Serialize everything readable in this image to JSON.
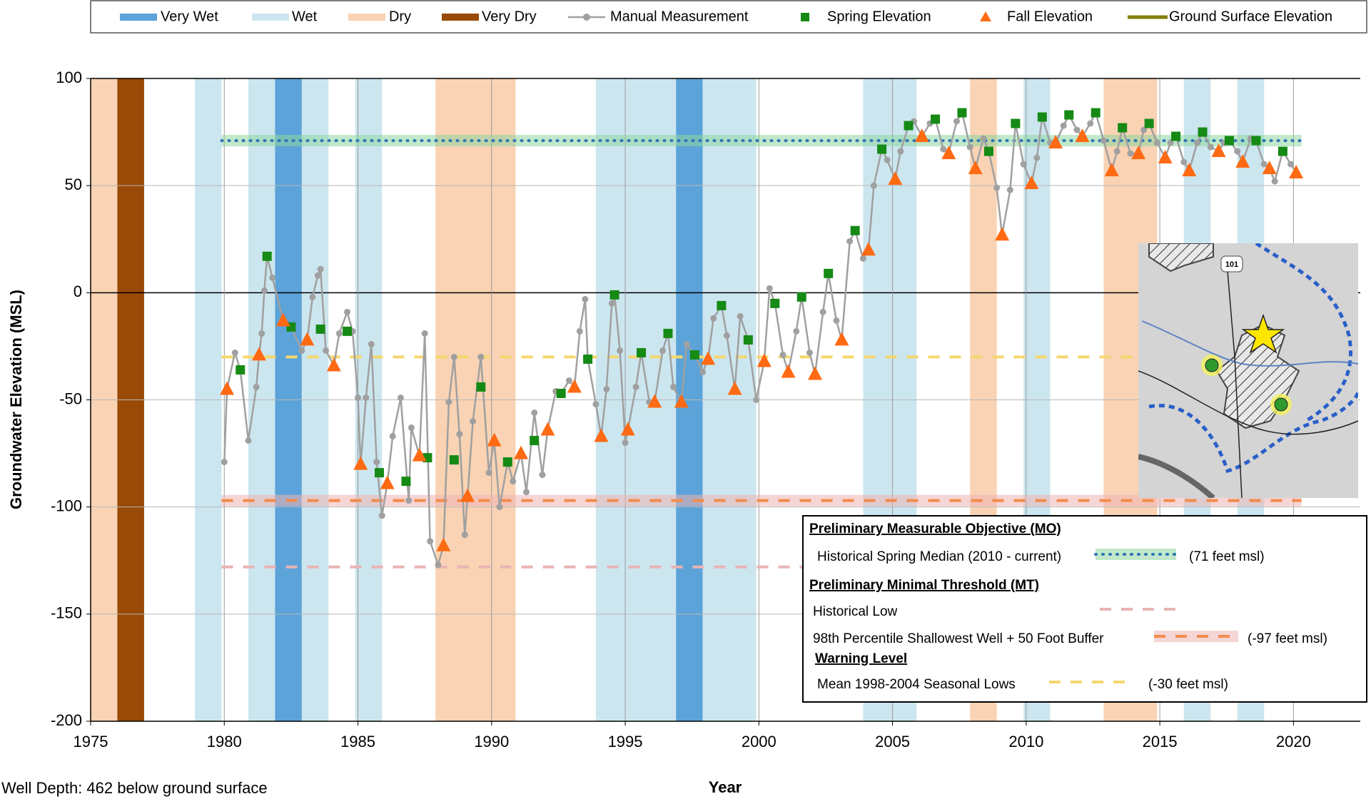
{
  "chart_data": {
    "type": "line",
    "x_label": "Year",
    "y_label": "Groundwater Elevation (MSL)",
    "note": "Well Depth: 462 below ground surface",
    "xlim": [
      1975,
      2022.5
    ],
    "xticks": [
      1975,
      1980,
      1985,
      1990,
      1995,
      2000,
      2005,
      2010,
      2015,
      2020
    ],
    "ylim": [
      -200,
      100
    ],
    "yticks": [
      -200,
      -150,
      -100,
      -50,
      0,
      50,
      100
    ],
    "grid": true,
    "climate_bands": {
      "classes": [
        {
          "name": "Very Wet",
          "color": "#5ba3d9"
        },
        {
          "name": "Wet",
          "color": "#cce6ef"
        },
        {
          "name": "Dry",
          "color": "#f9d3b4"
        },
        {
          "name": "Very Dry",
          "color": "#994a06"
        }
      ],
      "spans": [
        {
          "class": 2,
          "x": [
            1975,
            1976
          ]
        },
        {
          "class": 3,
          "x": [
            1976,
            1977
          ]
        },
        {
          "class": 1,
          "x": [
            1978.9,
            1979.9
          ]
        },
        {
          "class": 1,
          "x": [
            1980.9,
            1981.9
          ]
        },
        {
          "class": 0,
          "x": [
            1981.9,
            1982.9
          ]
        },
        {
          "class": 1,
          "x": [
            1982.9,
            1983.9
          ]
        },
        {
          "class": 1,
          "x": [
            1984.9,
            1985.9
          ]
        },
        {
          "class": 2,
          "x": [
            1987.9,
            1990.9
          ]
        },
        {
          "class": 1,
          "x": [
            1993.9,
            1996.9
          ]
        },
        {
          "class": 0,
          "x": [
            1996.9,
            1997.9
          ]
        },
        {
          "class": 1,
          "x": [
            1997.9,
            1999.9
          ]
        },
        {
          "class": 1,
          "x": [
            2003.9,
            2005.9
          ]
        },
        {
          "class": 2,
          "x": [
            2007.9,
            2008.9
          ]
        },
        {
          "class": 1,
          "x": [
            2009.9,
            2010.9
          ]
        },
        {
          "class": 2,
          "x": [
            2012.9,
            2014.9
          ]
        },
        {
          "class": 1,
          "x": [
            2015.9,
            2016.9
          ]
        },
        {
          "class": 1,
          "x": [
            2017.9,
            2018.9
          ]
        }
      ]
    },
    "series": [
      {
        "name": "Manual Measurement",
        "color": "#a0a0a0",
        "marker": "circle",
        "x": [
          1980.0,
          1980.1,
          1980.4,
          1980.6,
          1980.9,
          1981.2,
          1981.3,
          1981.4,
          1981.5,
          1981.6,
          1981.8,
          1982.2,
          1982.5,
          1982.9,
          1983.1,
          1983.3,
          1983.5,
          1983.6,
          1983.8,
          1984.1,
          1984.3,
          1984.6,
          1984.8,
          1985.0,
          1985.1,
          1985.3,
          1985.5,
          1985.7,
          1985.9,
          1986.1,
          1986.3,
          1986.6,
          1986.9,
          1987.0,
          1987.3,
          1987.5,
          1987.7,
          1988.0,
          1988.2,
          1988.4,
          1988.6,
          1988.8,
          1989.0,
          1989.1,
          1989.3,
          1989.6,
          1989.9,
          1990.1,
          1990.3,
          1990.6,
          1990.8,
          1991.1,
          1991.3,
          1991.6,
          1991.9,
          1992.1,
          1992.4,
          1992.6,
          1992.9,
          1993.1,
          1993.3,
          1993.5,
          1993.6,
          1993.9,
          1994.1,
          1994.3,
          1994.5,
          1994.6,
          1994.8,
          1995.0,
          1995.1,
          1995.4,
          1995.6,
          1995.9,
          1996.1,
          1996.4,
          1996.6,
          1996.8,
          1997.1,
          1997.3,
          1997.6,
          1997.9,
          1998.1,
          1998.3,
          1998.6,
          1998.8,
          1999.1,
          1999.3,
          1999.6,
          1999.9,
          2000.2,
          2000.4,
          2000.6,
          2000.9,
          2001.1,
          2001.4,
          2001.6,
          2001.9,
          2002.1,
          2002.4,
          2002.6,
          2002.9,
          2003.1,
          2003.4,
          2003.6,
          2003.9,
          2004.1,
          2004.3,
          2004.6,
          2004.8,
          2005.1,
          2005.3,
          2005.6,
          2005.8,
          2006.1,
          2006.4,
          2006.6,
          2006.9,
          2007.1,
          2007.4,
          2007.6,
          2007.9,
          2008.1,
          2008.4,
          2008.6,
          2008.9,
          2009.1,
          2009.4,
          2009.6,
          2009.9,
          2010.2,
          2010.4,
          2010.6,
          2010.9,
          2011.1,
          2011.4,
          2011.6,
          2011.9,
          2012.1,
          2012.4,
          2012.6,
          2012.9,
          2013.2,
          2013.4,
          2013.6,
          2013.9,
          2014.2,
          2014.4,
          2014.6,
          2014.9,
          2015.2,
          2015.4,
          2015.6,
          2015.9,
          2016.1,
          2016.4,
          2016.6,
          2016.9,
          2017.2,
          2017.4,
          2017.6,
          2017.9,
          2018.1,
          2018.4,
          2018.6,
          2018.9,
          2019.1,
          2019.3,
          2019.6,
          2019.9,
          2020.1
        ],
        "values": [
          -79,
          -45,
          -28,
          -36,
          -69,
          -44,
          -29,
          -19,
          1,
          17,
          7,
          -13,
          -16,
          -27,
          -22,
          -2,
          8,
          11,
          -27,
          -34,
          -19,
          -9,
          -18,
          -49,
          -80,
          -49,
          -24,
          -79,
          -104,
          -89,
          -67,
          -49,
          -97,
          -63,
          -76,
          -19,
          -116,
          -127,
          -118,
          -51,
          -30,
          -66,
          -113,
          -95,
          -60,
          -30,
          -84,
          -69,
          -100,
          -79,
          -88,
          -75,
          -93,
          -56,
          -85,
          -64,
          -46,
          -47,
          -41,
          -44,
          -18,
          -3,
          -31,
          -52,
          -67,
          -45,
          -5,
          -1,
          -27,
          -70,
          -64,
          -44,
          -28,
          -51,
          -51,
          -27,
          -19,
          -44,
          -51,
          -24,
          -29,
          -37,
          -31,
          -12,
          -6,
          -20,
          -45,
          -11,
          -22,
          -50,
          -32,
          2,
          -5,
          -29,
          -37,
          -18,
          -2,
          -28,
          -38,
          -9,
          9,
          -13,
          -22,
          24,
          29,
          16,
          20,
          50,
          67,
          62,
          53,
          66,
          78,
          80,
          73,
          79,
          81,
          67,
          65,
          80,
          84,
          68,
          58,
          72,
          66,
          49,
          27,
          48,
          79,
          60,
          51,
          63,
          82,
          70,
          70,
          78,
          83,
          76,
          73,
          79,
          84,
          71,
          57,
          66,
          77,
          65,
          65,
          76,
          79,
          70,
          63,
          70,
          73,
          61,
          57,
          70,
          75,
          68,
          66,
          70,
          71,
          66,
          61,
          72,
          71,
          60,
          58,
          52,
          66,
          60,
          56
        ]
      },
      {
        "name": "Spring Elevation",
        "color": "#158a15",
        "marker": "square",
        "x": [
          1980.6,
          1981.6,
          1982.5,
          1983.6,
          1984.6,
          1985.8,
          1986.8,
          1987.6,
          1988.6,
          1989.6,
          1990.6,
          1991.6,
          1992.6,
          1993.6,
          1994.6,
          1995.6,
          1996.6,
          1997.6,
          1998.6,
          1999.6,
          2000.6,
          2001.6,
          2002.6,
          2003.6,
          2004.6,
          2005.6,
          2006.6,
          2007.6,
          2008.6,
          2009.6,
          2010.6,
          2011.6,
          2012.6,
          2013.6,
          2014.6,
          2015.6,
          2016.6,
          2017.6,
          2018.6,
          2019.6
        ],
        "values": [
          -36,
          17,
          -16,
          -17,
          -18,
          -84,
          -88,
          -77,
          -78,
          -44,
          -79,
          -69,
          -47,
          -31,
          -1,
          -28,
          -19,
          -29,
          -6,
          -22,
          -5,
          -2,
          9,
          29,
          67,
          78,
          81,
          84,
          66,
          79,
          82,
          83,
          84,
          77,
          79,
          73,
          75,
          71,
          71,
          66
        ]
      },
      {
        "name": "Fall Elevation",
        "color": "#ff6a13",
        "marker": "triangle",
        "x": [
          1980.1,
          1981.3,
          1982.2,
          1983.1,
          1984.1,
          1985.1,
          1986.1,
          1987.3,
          1988.2,
          1989.1,
          1990.1,
          1991.1,
          1992.1,
          1993.1,
          1994.1,
          1995.1,
          1996.1,
          1997.1,
          1998.1,
          1999.1,
          2000.2,
          2001.1,
          2002.1,
          2003.1,
          2004.1,
          2005.1,
          2006.1,
          2007.1,
          2008.1,
          2009.1,
          2010.2,
          2011.1,
          2012.1,
          2013.2,
          2014.2,
          2015.2,
          2016.1,
          2017.2,
          2018.1,
          2019.1,
          2020.1
        ],
        "values": [
          -45,
          -29,
          -13,
          -22,
          -34,
          -80,
          -89,
          -76,
          -118,
          -95,
          -69,
          -75,
          -64,
          -44,
          -67,
          -64,
          -51,
          -51,
          -31,
          -45,
          -32,
          -37,
          -38,
          -22,
          20,
          53,
          73,
          65,
          58,
          27,
          51,
          70,
          73,
          57,
          65,
          63,
          57,
          66,
          61,
          58,
          56
        ]
      },
      {
        "name": "Ground Surface Elevation",
        "color": "#808000",
        "marker": "line",
        "x": [],
        "values": []
      }
    ],
    "reference_groups": [
      {
        "title": "Preliminary Measurable Objective (MO)",
        "lines": [
          {
            "name": "Historical Spring Median (2010 - current)",
            "value": 71,
            "value_label": "(71 feet msl)",
            "color": "#2e75b6",
            "glow": "#8fd6a0",
            "style": "dotted",
            "x": [
              1979.9,
              2020.3
            ]
          }
        ]
      },
      {
        "title": "Preliminary Minimal Threshold (MT)",
        "lines": [
          {
            "name": "Historical Low",
            "value": -128,
            "color": "#e8b4b4",
            "style": "dashed",
            "x": [
              1979.9,
              2020.3
            ]
          },
          {
            "name": "98th Percentile Shallowest Well + 50 Foot Buffer",
            "value": -97,
            "value_label": "(-97 feet msl)",
            "color": "#f28c4c",
            "glow": "#f0b4b4",
            "style": "dashed",
            "x": [
              1979.9,
              2020.3
            ]
          }
        ]
      },
      {
        "title": "Warning Level",
        "lines": [
          {
            "name": "Mean 1998-2004 Seasonal Lows",
            "value": -30,
            "value_label": "(-30 feet msl)",
            "color": "#f5d76e",
            "style": "dashed",
            "x": [
              1979.9,
              2020.3
            ]
          }
        ]
      }
    ],
    "inset_map_label": "101"
  }
}
